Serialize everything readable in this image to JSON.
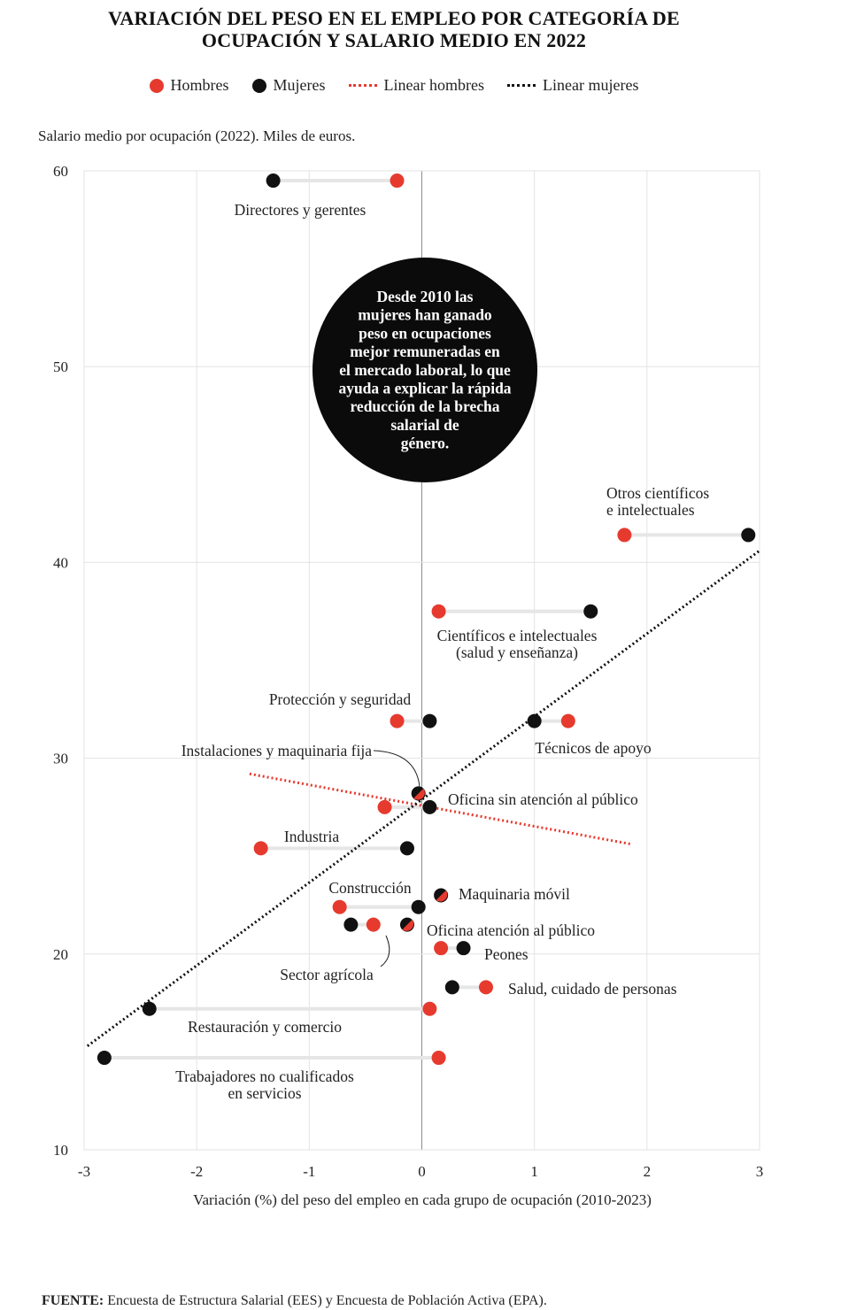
{
  "title_line1": "VARIACIÓN DEL PESO EN EL EMPLEO POR CATEGORÍA DE",
  "title_line2": "OCUPACIÓN Y SALARIO MEDIO EN 2022",
  "legend": {
    "hombres": "Hombres",
    "mujeres": "Mujeres",
    "linear_hombres": "Linear hombres",
    "linear_mujeres": "Linear mujeres"
  },
  "colors": {
    "hombres": "#e63a2e",
    "mujeres": "#111111",
    "connector": "#e6e6e6",
    "grid": "#e3e3e3"
  },
  "source_label": "FUENTE:",
  "source_text": " Encuesta de Estructura Salarial (EES) y Encuesta de Población Activa (EPA).",
  "callout_text": "Desde 2010 las mujeres han ganado peso en ocupaciones mejor remuneradas en el mercado laboral, lo que ayuda a explicar la rápida reducción de la brecha salarial de género.",
  "chart_data": {
    "type": "scatter",
    "ylabel": "Salario medio por ocupación (2022). Miles de euros.",
    "xlabel": "Variación (%) del peso del empleo en cada grupo de ocupación (2010-2023)",
    "xlim": [
      -3,
      3
    ],
    "ylim": [
      10,
      60
    ],
    "xticks": [
      "-3",
      "-2",
      "-1",
      "0",
      "1",
      "2",
      "3"
    ],
    "yticks": [
      "10",
      "20",
      "30",
      "40",
      "50",
      "60"
    ],
    "grid": true,
    "legend_position": "top",
    "series": [
      {
        "name": "Hombres",
        "color": "#e63a2e"
      },
      {
        "name": "Mujeres",
        "color": "#111111"
      }
    ],
    "categories": [
      {
        "label": "Directores y gerentes",
        "y": 59.5,
        "hombres": -0.22,
        "mujeres": -1.32
      },
      {
        "label": "Otros científicos\ne intelectuales",
        "y": 41.4,
        "hombres": 1.8,
        "mujeres": 2.9
      },
      {
        "label": "Científicos e intelectuales\n(salud y enseñanza)",
        "y": 37.5,
        "hombres": 0.15,
        "mujeres": 1.5
      },
      {
        "label": "Protección y seguridad",
        "y": 31.9,
        "hombres": -0.22,
        "mujeres": 0.07
      },
      {
        "label": "Técnicos de apoyo",
        "y": 31.9,
        "hombres": 1.3,
        "mujeres": 1.0
      },
      {
        "label": "Instalaciones y maquinaria fija",
        "y": 28.2,
        "hombres": -0.03,
        "mujeres": -0.03
      },
      {
        "label": "Oficina sin atención al público",
        "y": 27.5,
        "hombres": -0.33,
        "mujeres": 0.07
      },
      {
        "label": "Industria",
        "y": 25.4,
        "hombres": -1.43,
        "mujeres": -0.13
      },
      {
        "label": "Maquinaria móvil",
        "y": 23.0,
        "hombres": 0.17,
        "mujeres": 0.17
      },
      {
        "label": "Construcción",
        "y": 22.4,
        "hombres": -0.73,
        "mujeres": -0.03
      },
      {
        "label": "Sector agrícola",
        "y": 21.5,
        "hombres": -0.43,
        "mujeres": -0.63
      },
      {
        "label": "Oficina atención al público",
        "y": 21.5,
        "hombres": -0.13,
        "mujeres": -0.13
      },
      {
        "label": "Peones",
        "y": 20.3,
        "hombres": 0.17,
        "mujeres": 0.37
      },
      {
        "label": "Salud, cuidado de personas",
        "y": 18.3,
        "hombres": 0.57,
        "mujeres": 0.27
      },
      {
        "label": "Restauración y comercio",
        "y": 17.2,
        "hombres": 0.07,
        "mujeres": -2.42
      },
      {
        "label": "Trabajadores no cualificados\nen servicios",
        "y": 14.7,
        "hombres": 0.15,
        "mujeres": -2.82
      }
    ],
    "trendlines": [
      {
        "name": "Linear hombres",
        "color": "#e63a2e",
        "points": [
          [
            -1.53,
            29.2
          ],
          [
            1.87,
            25.6
          ]
        ]
      },
      {
        "name": "Linear mujeres",
        "color": "#111111",
        "points": [
          [
            -2.97,
            15.3
          ],
          [
            3.0,
            40.6
          ]
        ]
      }
    ]
  }
}
